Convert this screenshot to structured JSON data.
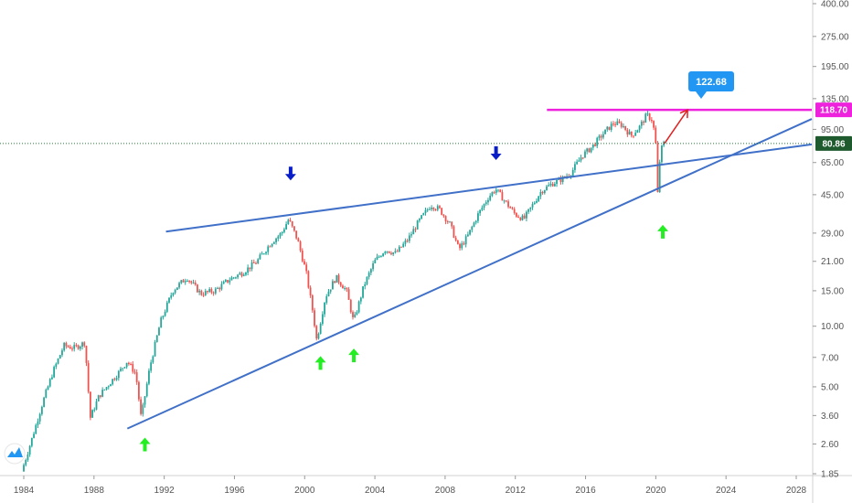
{
  "chart_data": {
    "type": "candlestick",
    "title": "",
    "xlabel": "",
    "ylabel": "",
    "y_scale": "log",
    "ylim": [
      1.85,
      400
    ],
    "xlim": [
      1984.0,
      2029.0
    ],
    "grid": false,
    "y_ticks": [
      "400.00",
      "275.00",
      "195.00",
      "135.00",
      "95.00",
      "65.00",
      "45.00",
      "29.00",
      "21.00",
      "15.00",
      "10.00",
      "7.00",
      "5.00",
      "3.60",
      "2.60",
      "1.85"
    ],
    "x_ticks": [
      "1984",
      "1988",
      "1992",
      "1996",
      "2000",
      "2004",
      "2008",
      "2012",
      "2016",
      "2020",
      "2024",
      "2028"
    ],
    "price_series": [
      [
        1984.0,
        1.9
      ],
      [
        1984.6,
        2.8
      ],
      [
        1985.2,
        4.2
      ],
      [
        1985.8,
        6.0
      ],
      [
        1986.4,
        8.0
      ],
      [
        1987.0,
        7.8
      ],
      [
        1987.6,
        8.3
      ],
      [
        1987.9,
        3.5
      ],
      [
        1988.4,
        4.5
      ],
      [
        1989.0,
        5.2
      ],
      [
        1989.6,
        6.0
      ],
      [
        1990.0,
        6.7
      ],
      [
        1990.5,
        5.8
      ],
      [
        1990.8,
        3.5
      ],
      [
        1991.3,
        6.3
      ],
      [
        1991.9,
        10.5
      ],
      [
        1992.6,
        15.0
      ],
      [
        1993.4,
        17.5
      ],
      [
        1994.2,
        14.5
      ],
      [
        1995.0,
        15.0
      ],
      [
        1995.8,
        17.0
      ],
      [
        1996.6,
        18.5
      ],
      [
        1997.4,
        21.0
      ],
      [
        1998.2,
        26.0
      ],
      [
        1998.8,
        29.0
      ],
      [
        1999.2,
        34.0
      ],
      [
        1999.7,
        27.0
      ],
      [
        2000.2,
        18.5
      ],
      [
        2000.6,
        11.5
      ],
      [
        2000.8,
        8.5
      ],
      [
        2001.3,
        14.0
      ],
      [
        2001.9,
        17.5
      ],
      [
        2002.5,
        15.0
      ],
      [
        2002.9,
        10.5
      ],
      [
        2003.5,
        16.0
      ],
      [
        2004.1,
        21.0
      ],
      [
        2004.7,
        24.0
      ],
      [
        2005.3,
        23.0
      ],
      [
        2006.0,
        27.0
      ],
      [
        2006.6,
        33.0
      ],
      [
        2007.3,
        40.0
      ],
      [
        2007.8,
        38.0
      ],
      [
        2008.4,
        32.0
      ],
      [
        2008.9,
        24.0
      ],
      [
        2009.4,
        28.0
      ],
      [
        2010.0,
        36.0
      ],
      [
        2010.6,
        44.0
      ],
      [
        2011.0,
        48.0
      ],
      [
        2011.5,
        42.0
      ],
      [
        2012.1,
        36.0
      ],
      [
        2012.6,
        34.0
      ],
      [
        2013.1,
        40.0
      ],
      [
        2013.6,
        47.0
      ],
      [
        2014.2,
        51.0
      ],
      [
        2014.8,
        54.0
      ],
      [
        2015.3,
        58.0
      ],
      [
        2015.9,
        70.0
      ],
      [
        2016.5,
        78.0
      ],
      [
        2017.1,
        90.0
      ],
      [
        2017.7,
        102.0
      ],
      [
        2018.2,
        100.0
      ],
      [
        2018.7,
        88.0
      ],
      [
        2019.2,
        98.0
      ],
      [
        2019.6,
        112.0
      ],
      [
        2019.9,
        106.0
      ],
      [
        2020.1,
        86.0
      ],
      [
        2020.2,
        42.0
      ],
      [
        2020.35,
        68.0
      ],
      [
        2020.5,
        80.86
      ]
    ],
    "series": [
      {
        "name": "",
        "type": "trendline",
        "color": "#4070c8",
        "points": [
          [
            1992.1,
            29.5
          ],
          [
            2029.0,
            80.0
          ]
        ]
      },
      {
        "name": "",
        "type": "trendline",
        "color": "#4070c8",
        "points": [
          [
            1989.9,
            3.1
          ],
          [
            2029.0,
            107.0
          ]
        ]
      },
      {
        "name": "",
        "type": "hline",
        "color": "#ee22dd",
        "value": 118.7,
        "x_start": 2013.8
      },
      {
        "name": "",
        "type": "hline",
        "color": "#1e7b34",
        "style": "dotted",
        "value": 80.86
      },
      {
        "name": "",
        "type": "projection",
        "color": "#e02020",
        "points": [
          [
            2020.5,
            80.86
          ],
          [
            2021.5,
            118.7
          ]
        ]
      }
    ],
    "annotations": [
      {
        "kind": "down-arrow",
        "color": "#0a1ec8",
        "x": 1999.2,
        "y": 57
      },
      {
        "kind": "down-arrow",
        "color": "#0a1ec8",
        "x": 2010.9,
        "y": 72
      },
      {
        "kind": "up-arrow",
        "color": "#22ee22",
        "x": 1990.9,
        "y": 2.6
      },
      {
        "kind": "up-arrow",
        "color": "#22ee22",
        "x": 2000.9,
        "y": 6.6
      },
      {
        "kind": "up-arrow",
        "color": "#22ee22",
        "x": 2002.8,
        "y": 7.2
      },
      {
        "kind": "up-arrow",
        "color": "#22ee22",
        "x": 2020.4,
        "y": 29.6
      }
    ],
    "price_labels": [
      {
        "text": "118.70",
        "value": 118.7,
        "bg": "#ee22dd",
        "fg": "#ffffff"
      },
      {
        "text": "80.86",
        "value": 80.86,
        "bg": "#1e5a2e",
        "fg": "#ffffff"
      }
    ],
    "callout": {
      "text": "122.68",
      "value": 122.68,
      "bg": "#2196f3"
    }
  },
  "icons": {
    "logo": "tradingview-logo-icon"
  }
}
